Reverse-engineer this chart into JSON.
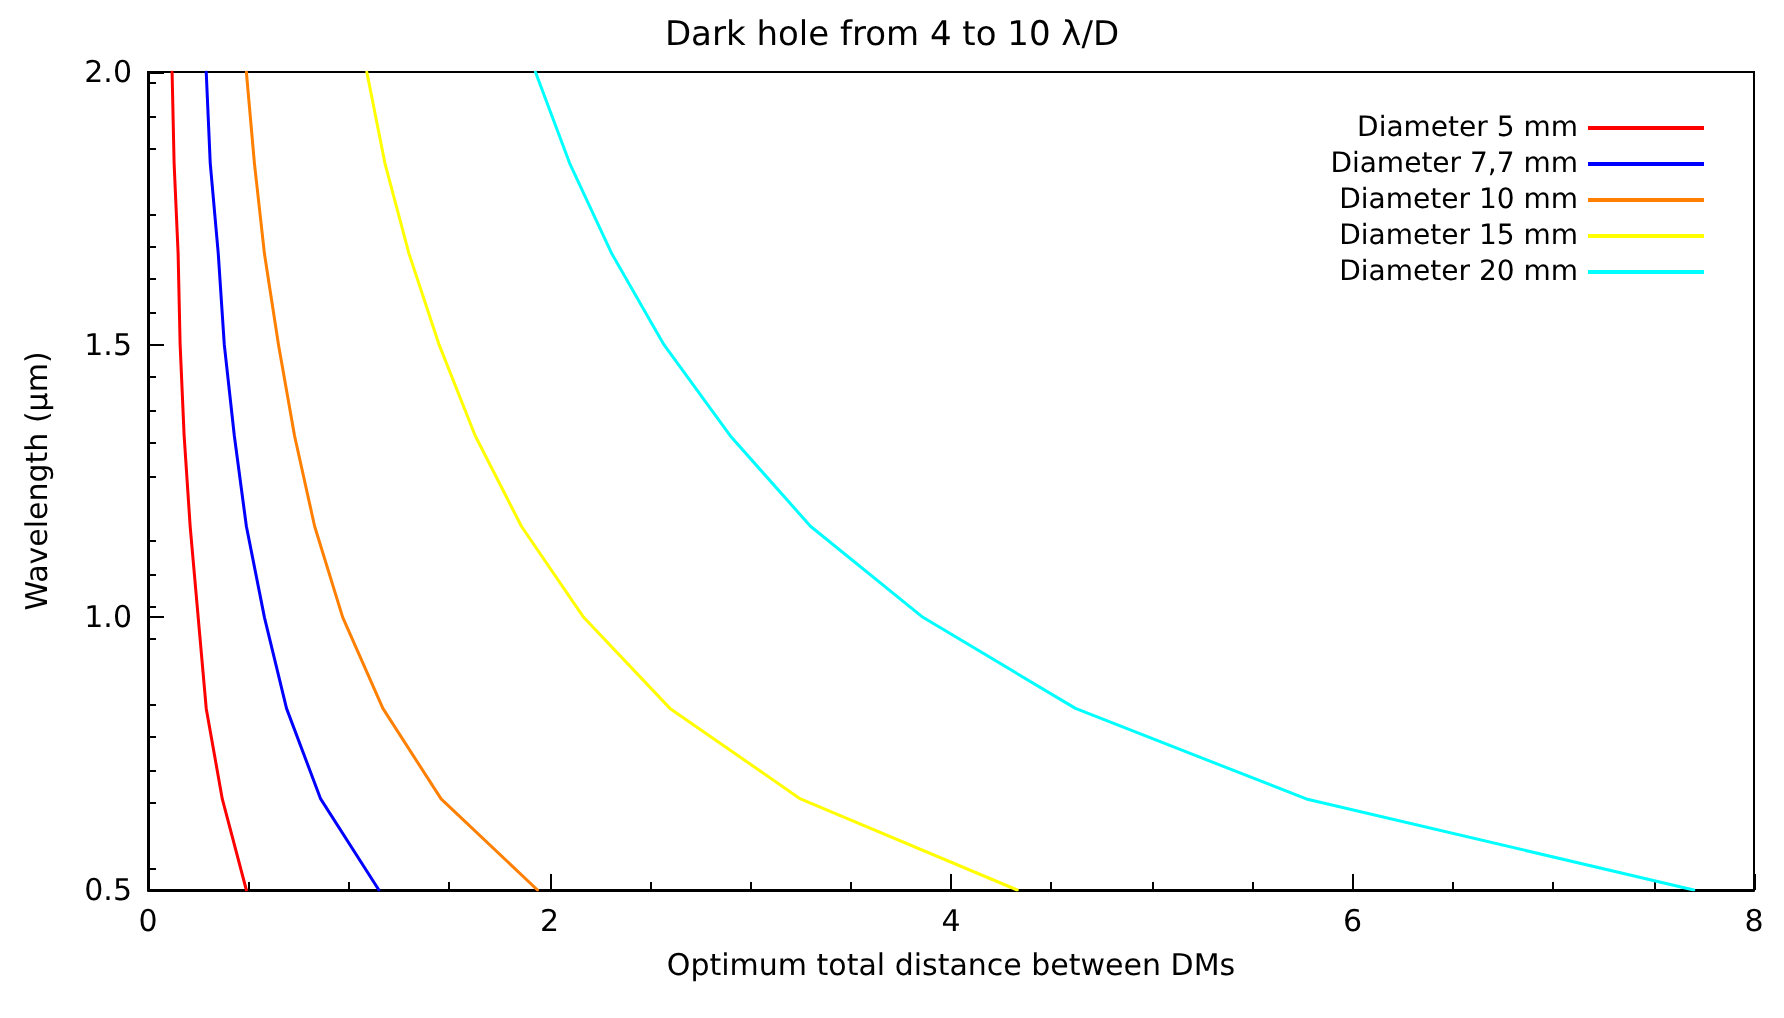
{
  "chart_data": {
    "type": "line",
    "title": "Dark hole from 4 to 10 λ/D",
    "xlabel": "Optimum total distance between DMs",
    "ylabel": "Wavelength (μm)",
    "xlim": [
      0,
      8
    ],
    "xticks": [
      0,
      2,
      4,
      6,
      8
    ],
    "ylim": [
      0.5,
      2
    ],
    "yticks": [
      {
        "value": 0.5,
        "label": "0.5"
      },
      {
        "value": 1,
        "label": "1.0"
      },
      {
        "value": 1.5,
        "label": "1.5"
      },
      {
        "value": 2,
        "label": "2.0"
      }
    ],
    "grid": false,
    "legend": "top right",
    "marker": "none",
    "line_style": "solid",
    "series": [
      {
        "name": "Diameter 5 mm",
        "color": "#ff0000",
        "x": [
          0.49,
          0.37,
          0.29,
          0.25,
          0.21,
          0.18,
          0.16,
          0.15,
          0.13,
          0.12
        ],
        "values": [
          0.5,
          0.667,
          0.833,
          1.0,
          1.167,
          1.333,
          1.5,
          1.667,
          1.833,
          2.0
        ]
      },
      {
        "name": "Diameter 7,7 mm",
        "color": "#0000ff",
        "x": [
          1.15,
          0.86,
          0.69,
          0.58,
          0.49,
          0.43,
          0.38,
          0.35,
          0.31,
          0.29
        ],
        "values": [
          0.5,
          0.667,
          0.833,
          1.0,
          1.167,
          1.333,
          1.5,
          1.667,
          1.833,
          2.0
        ]
      },
      {
        "name": "Diameter 10 mm",
        "color": "#ff7f00",
        "x": [
          1.94,
          1.46,
          1.17,
          0.97,
          0.83,
          0.73,
          0.65,
          0.58,
          0.53,
          0.49
        ],
        "values": [
          0.5,
          0.667,
          0.833,
          1.0,
          1.167,
          1.333,
          1.5,
          1.667,
          1.833,
          2.0
        ]
      },
      {
        "name": "Diameter 15 mm",
        "color": "#ffff00",
        "x": [
          4.33,
          3.25,
          2.6,
          2.17,
          1.86,
          1.63,
          1.45,
          1.3,
          1.18,
          1.09
        ],
        "values": [
          0.5,
          0.667,
          0.833,
          1.0,
          1.167,
          1.333,
          1.5,
          1.667,
          1.833,
          2.0
        ]
      },
      {
        "name": "Diameter 20 mm",
        "color": "#00ffff",
        "x": [
          7.7,
          5.77,
          4.62,
          3.86,
          3.3,
          2.9,
          2.57,
          2.31,
          2.1,
          1.93
        ],
        "values": [
          0.5,
          0.667,
          0.833,
          1.0,
          1.167,
          1.333,
          1.5,
          1.667,
          1.833,
          2.0
        ]
      }
    ]
  }
}
